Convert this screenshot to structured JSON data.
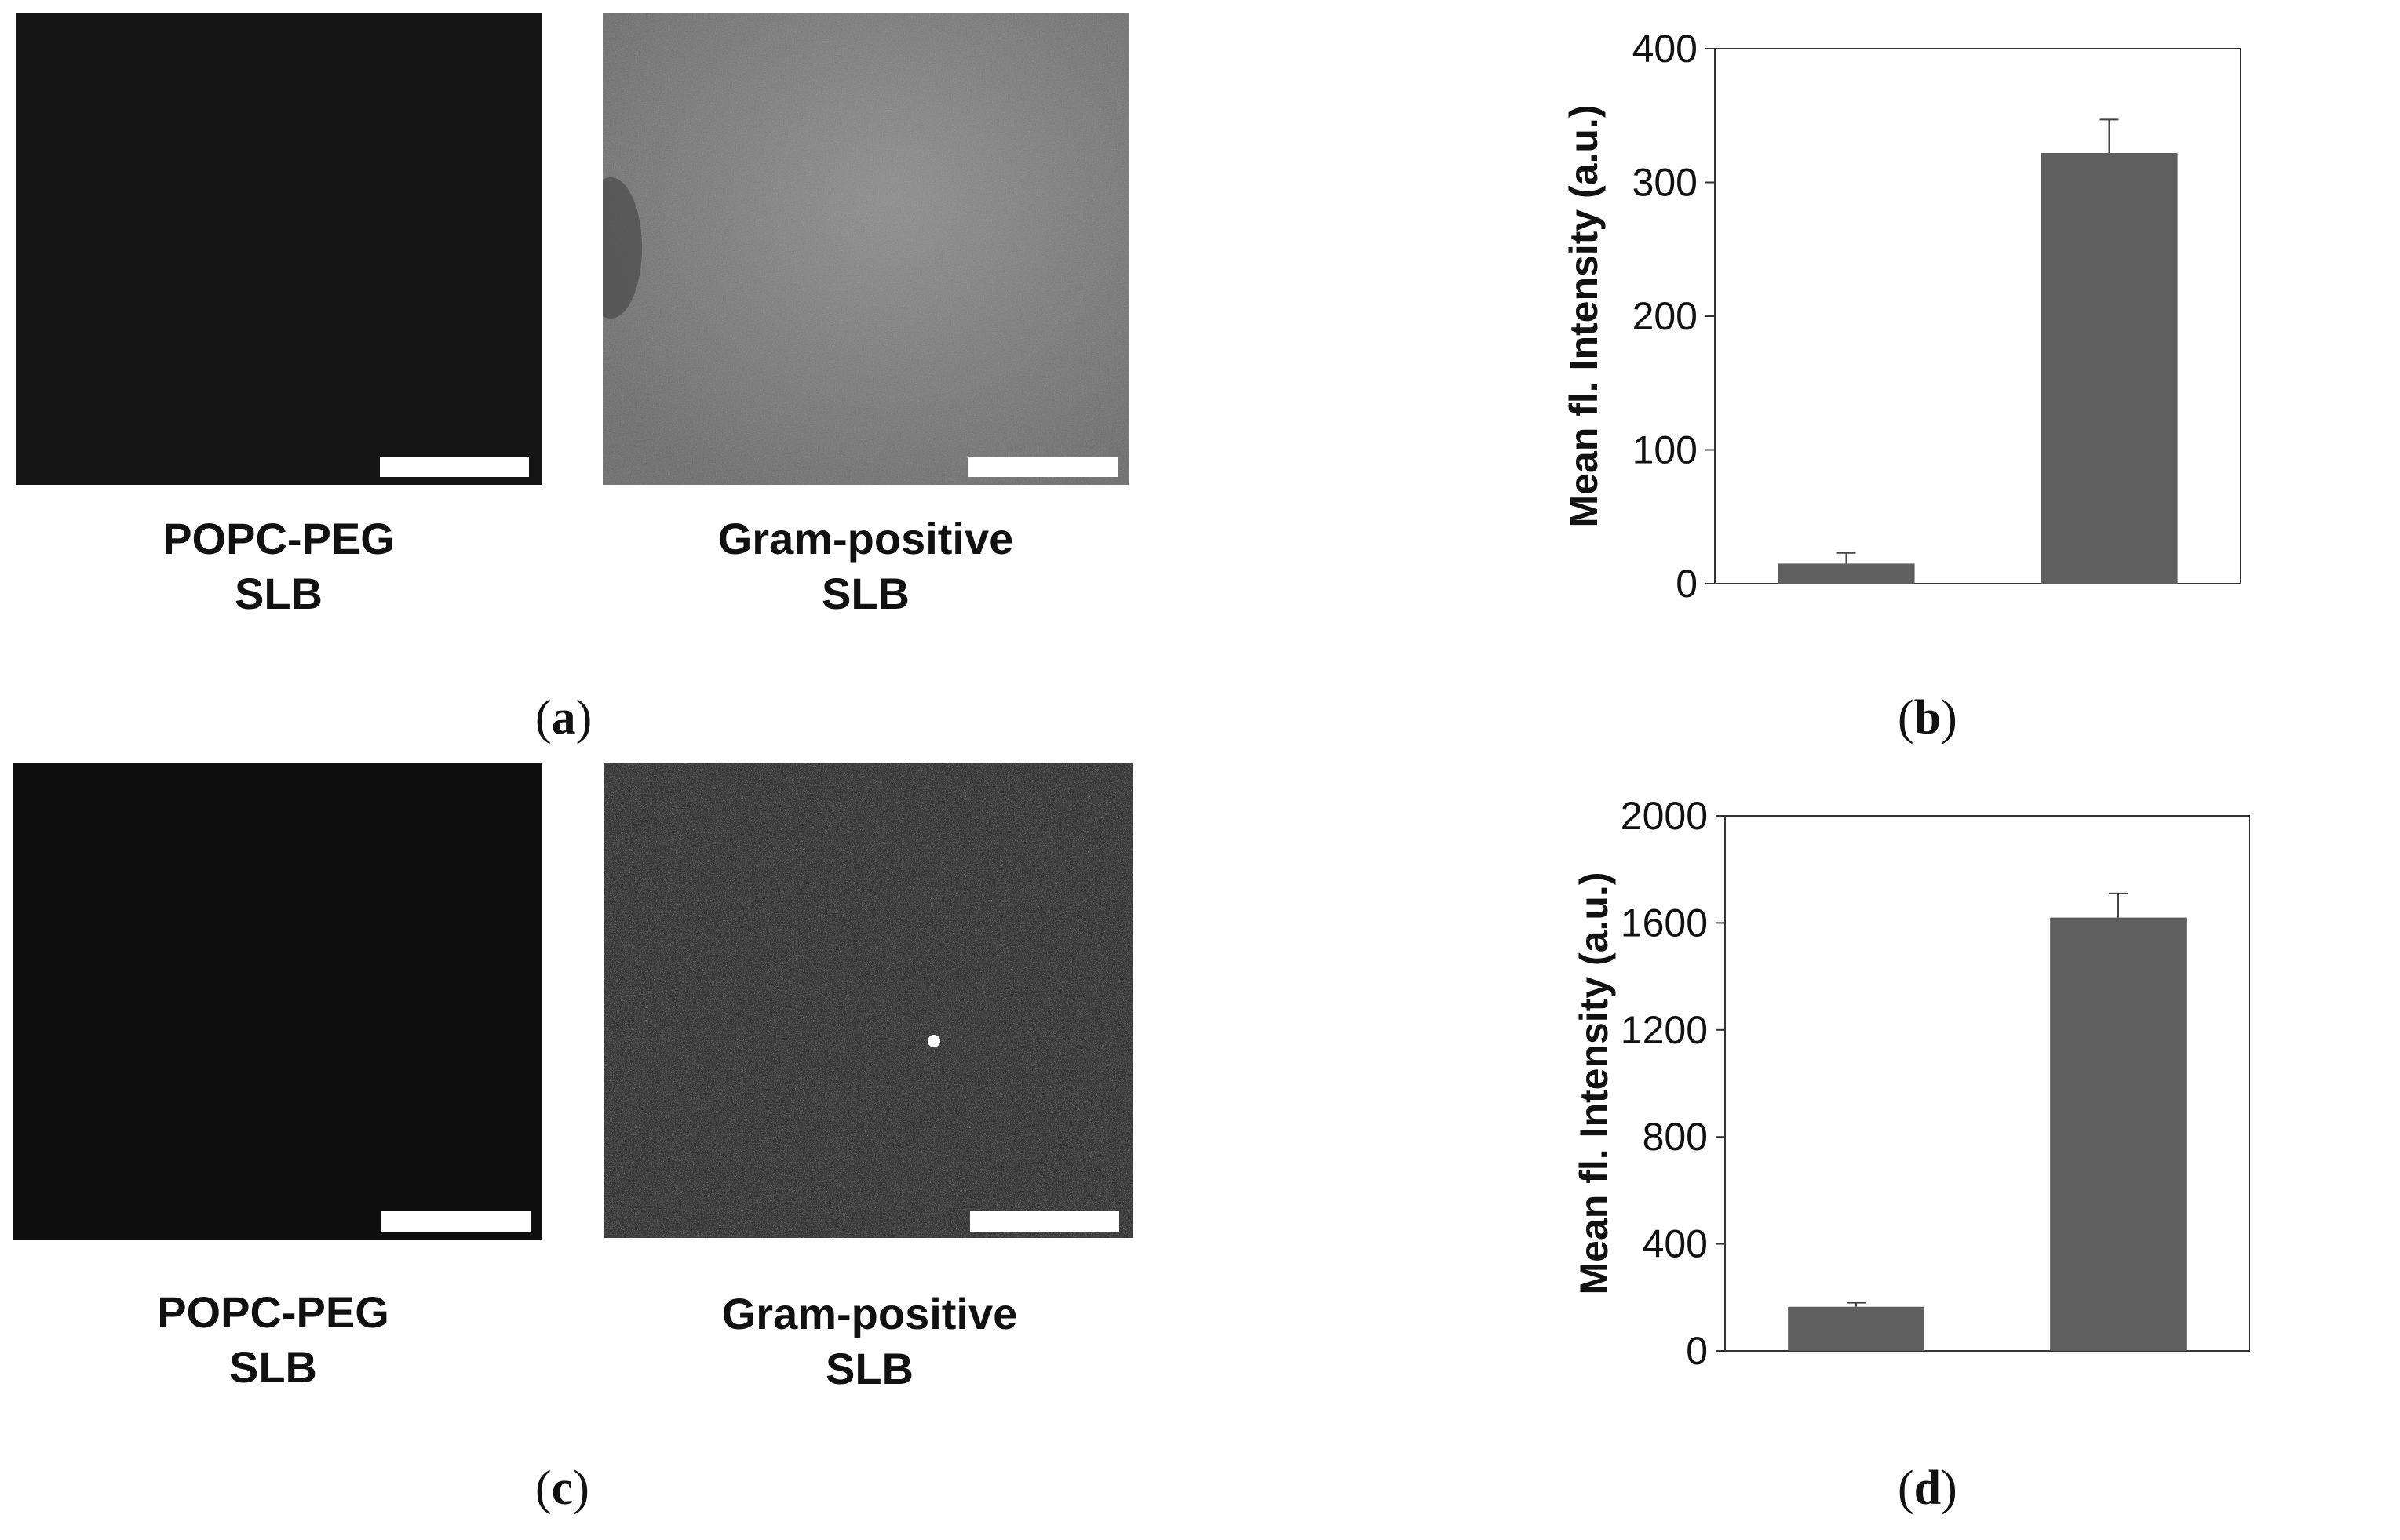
{
  "panels": {
    "a": {
      "label_open": "(",
      "label_letter": "a",
      "label_close": ")",
      "image_labels": [
        "POPC-PEG\nSLB",
        "Gram-positive\nSLB"
      ]
    },
    "b": {
      "label_open": "(",
      "label_letter": "b",
      "label_close": ")"
    },
    "c": {
      "label_open": "(",
      "label_letter": "c",
      "label_close": ")",
      "image_labels": [
        "POPC-PEG\nSLB",
        "Gram-positive\nSLB"
      ]
    },
    "d": {
      "label_open": "(",
      "label_letter": "d",
      "label_close": ")"
    }
  },
  "colors": {
    "bar": "#5f5f5f",
    "dark_image": "#111111",
    "bright_image": "#6e6e6e",
    "bright_image_c": "#3b3b3b"
  },
  "chart_data": [
    {
      "type": "bar",
      "panel": "b",
      "categories": [
        "",
        ""
      ],
      "values": [
        15,
        322
      ],
      "errors": [
        8,
        25
      ],
      "ylabel": "Mean fl. Intensity (a.u.)",
      "ylim": [
        0,
        400
      ],
      "yticks": [
        0,
        100,
        200,
        300,
        400
      ],
      "grid": false
    },
    {
      "type": "bar",
      "panel": "d",
      "categories": [
        "",
        ""
      ],
      "values": [
        165,
        1620
      ],
      "errors": [
        15,
        90
      ],
      "ylabel": "Mean fl. Intensity (a.u.)",
      "ylim": [
        0,
        2000
      ],
      "yticks": [
        0,
        400,
        800,
        1200,
        1600,
        2000
      ],
      "grid": false
    }
  ]
}
